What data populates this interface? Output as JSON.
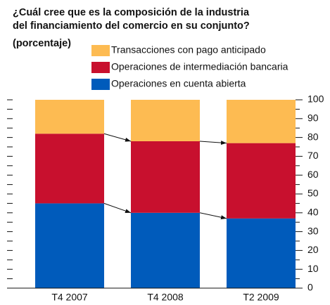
{
  "chart_data": {
    "type": "stacked_bar",
    "title": [
      "¿Cuál cree que es la composición de la industria",
      "del financiamiento del comercio en su conjunto?"
    ],
    "subtitle": "(porcentaje)",
    "categories": [
      "T4 2007",
      "T4 2008",
      "T2 2009"
    ],
    "series": [
      {
        "name": "Operaciones en cuenta abierta",
        "color": "#005bbb",
        "values": [
          45,
          40,
          37
        ]
      },
      {
        "name": "Operaciones de intermediación bancaria",
        "color": "#c8102e",
        "values": [
          37,
          38,
          40
        ]
      },
      {
        "name": "Transacciones con pago anticipado",
        "color": "#fdbb52",
        "values": [
          18,
          22,
          23
        ]
      }
    ],
    "ylim": [
      0,
      100
    ],
    "yticks": [
      0,
      10,
      20,
      30,
      40,
      50,
      60,
      70,
      80,
      90,
      100
    ],
    "yticks_minor": [
      5,
      15,
      25,
      35,
      45,
      55,
      65,
      75,
      85,
      95
    ]
  }
}
